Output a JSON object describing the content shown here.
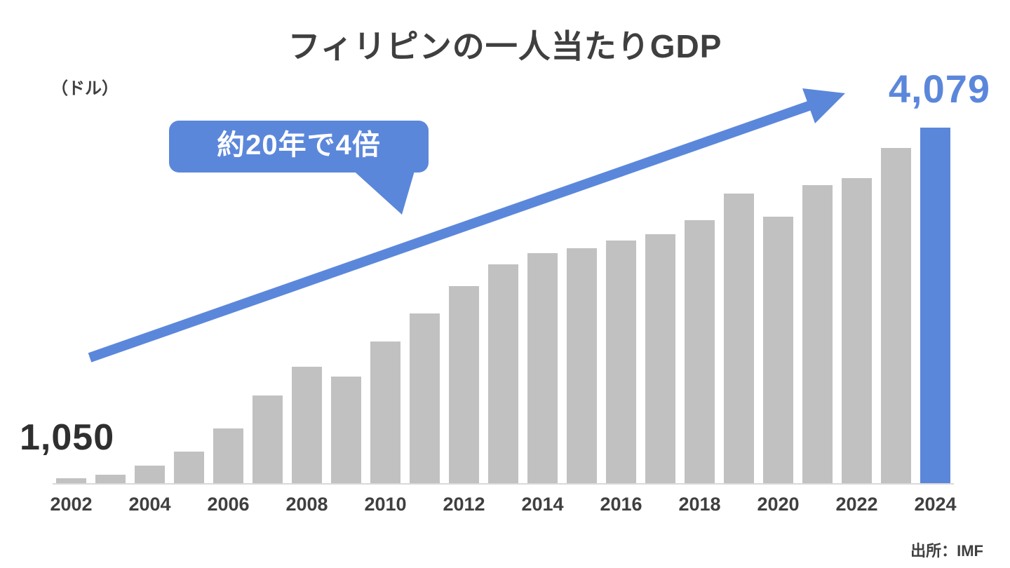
{
  "title": "フィリピンの一人当たりGDP",
  "unit_label": "（ドル）",
  "annotation": {
    "text": "約20年で4倍"
  },
  "source": "出所：IMF",
  "data_labels": {
    "first": "1,050",
    "last": "4,079"
  },
  "colors": {
    "accent": "#5B87DB",
    "bar": "#C1C1C1",
    "text_dark": "#3F3F3F",
    "axis": "#D9D9D9",
    "annotation_text": "#FFFFFF",
    "background": "#FFFFFF"
  },
  "chart_data": {
    "type": "bar",
    "title": "フィリピンの一人当たりGDP",
    "ylabel": "（ドル）",
    "xlabel": "",
    "x": [
      2002,
      2003,
      2004,
      2005,
      2006,
      2007,
      2008,
      2009,
      2010,
      2011,
      2012,
      2013,
      2014,
      2015,
      2016,
      2017,
      2018,
      2019,
      2020,
      2021,
      2022,
      2023,
      2024
    ],
    "values": [
      1050,
      1080,
      1160,
      1280,
      1480,
      1765,
      2015,
      1925,
      2230,
      2470,
      2710,
      2900,
      2995,
      3035,
      3105,
      3155,
      3280,
      3510,
      3310,
      3580,
      3645,
      3905,
      4079
    ],
    "labeled_points": {
      "2002": 1050,
      "2024": 4079
    },
    "highlight_year": 2024,
    "x_ticks": [
      2002,
      2004,
      2006,
      2008,
      2010,
      2012,
      2014,
      2016,
      2018,
      2020,
      2022,
      2024
    ],
    "ylim": [
      1000,
      4079
    ],
    "grid": false,
    "legend": null,
    "annotation": "約20年で4倍",
    "source": "出所：IMF"
  }
}
